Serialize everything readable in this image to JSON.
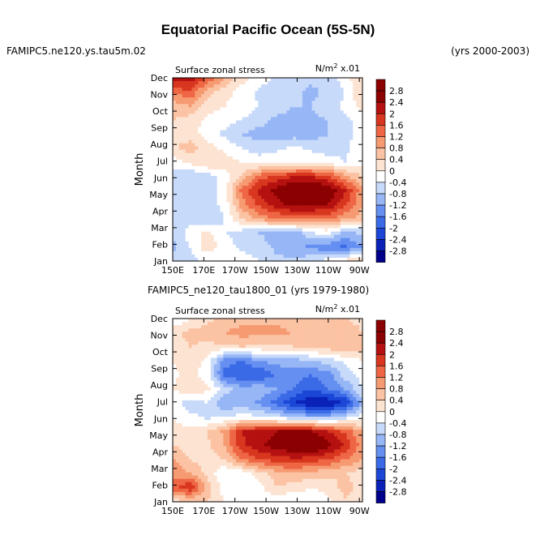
{
  "title": "Equatorial Pacific Ocean (5S-5N)",
  "top_left_label": "FAMIPC5.ne120.ys.tau5m.02",
  "top_right_label": "(yrs 2000-2003)",
  "bottom_case_label": "FAMIPC5_ne120_tau1800_01 (yrs 1979-1980)",
  "units": "N/m",
  "units_power": "2",
  "units_scale": "x.01",
  "colors": {
    "levels": [
      "#00008b",
      "#0a22b8",
      "#1c47d6",
      "#3a6ae6",
      "#658ff0",
      "#97b6f6",
      "#c8dafa",
      "#ffffff",
      "#fde3d2",
      "#fbc3a3",
      "#f69a72",
      "#ee6644",
      "#d8361f",
      "#b51111",
      "#8b0000"
    ]
  },
  "chart_data": [
    {
      "type": "heatmap",
      "subtitle": "Surface zonal stress",
      "units": "N/m^2 x.01",
      "xlabel": "",
      "ylabel": "Month",
      "xticks": [
        "150E",
        "170E",
        "170W",
        "150W",
        "130W",
        "110W",
        "90W"
      ],
      "xtick_lon": [
        150,
        170,
        190,
        210,
        230,
        250,
        270
      ],
      "xlim": [
        150,
        272
      ],
      "yticks": [
        "Jan",
        "Feb",
        "Mar",
        "Apr",
        "May",
        "Jun",
        "Jul",
        "Aug",
        "Sep",
        "Oct",
        "Nov",
        "Dec"
      ],
      "ylim": [
        1,
        12
      ],
      "colorbar_levels": [
        "2.8",
        "2.4",
        "2",
        "1.6",
        "1.2",
        "0.8",
        "0.4",
        "0",
        "-0.4",
        "-0.8",
        "-1.2",
        "-1.6",
        "-2",
        "-2.4",
        "-2.8"
      ],
      "grid": [
        [
          -0.6,
          -0.5,
          -0.4,
          -0.4,
          -0.2,
          -0.4,
          -0.7,
          -0.7,
          -0.5,
          -0.2,
          0.2,
          0.3
        ],
        [
          -0.9,
          -0.4,
          0.3,
          -0.2,
          -0.5,
          -0.6,
          -0.9,
          -1.1,
          -1.3,
          -1.5,
          -1.7,
          -1.2
        ],
        [
          -0.8,
          -0.2,
          0.1,
          -0.4,
          -0.6,
          -0.8,
          -1.0,
          -1.2,
          -0.4,
          -0.3,
          -0.9,
          -0.7
        ],
        [
          -0.6,
          -0.6,
          -0.8,
          -0.4,
          0.4,
          0.9,
          1.2,
          1.3,
          1.3,
          1.2,
          0.9,
          0.6
        ],
        [
          -0.4,
          -0.6,
          -0.6,
          -0.3,
          1.0,
          1.7,
          2.2,
          2.6,
          2.5,
          2.4,
          1.7,
          0.8
        ],
        [
          -0.4,
          -0.6,
          -0.6,
          -0.2,
          1.3,
          2.1,
          2.6,
          3.0,
          3.0,
          2.8,
          2.0,
          0.9
        ],
        [
          -0.6,
          -0.8,
          -0.6,
          -0.2,
          0.5,
          1.4,
          1.7,
          2.0,
          2.0,
          1.7,
          0.9,
          0.4
        ],
        [
          -0.2,
          0.1,
          0.4,
          0.2,
          0.0,
          -0.2,
          -0.1,
          -0.1,
          0.0,
          -0.2,
          -0.4,
          -0.2
        ],
        [
          0.3,
          0.6,
          0.2,
          -0.1,
          -0.4,
          -0.6,
          -0.5,
          -0.3,
          -0.5,
          -0.6,
          -0.5,
          0.0
        ],
        [
          0.4,
          0.2,
          -0.2,
          -0.5,
          -0.8,
          -1.0,
          -1.1,
          -1.0,
          -1.0,
          -0.8,
          -0.6,
          -0.2
        ],
        [
          0.4,
          0.2,
          -0.1,
          -0.2,
          -0.4,
          -0.6,
          -0.9,
          -0.9,
          -0.9,
          -0.8,
          -0.5,
          -0.3
        ],
        [
          0.6,
          0.8,
          0.2,
          0.0,
          -0.2,
          -0.4,
          -0.6,
          -0.8,
          -0.8,
          -0.6,
          -0.3,
          0.2
        ],
        [
          1.2,
          1.6,
          0.6,
          0.2,
          -0.2,
          -0.5,
          -0.6,
          -0.7,
          -0.9,
          -0.7,
          -0.4,
          0.4
        ],
        [
          2.4,
          2.2,
          1.6,
          0.8,
          0.2,
          -0.2,
          -0.5,
          -0.6,
          -0.7,
          -0.6,
          -0.2,
          0.4
        ]
      ]
    },
    {
      "type": "heatmap",
      "subtitle": "Surface zonal stress",
      "units": "N/m^2 x.01",
      "xlabel": "",
      "ylabel": "Month",
      "xticks": [
        "150E",
        "170E",
        "170W",
        "150W",
        "130W",
        "110W",
        "90W"
      ],
      "xtick_lon": [
        150,
        170,
        190,
        210,
        230,
        250,
        270
      ],
      "xlim": [
        150,
        272
      ],
      "yticks": [
        "Jan",
        "Feb",
        "Mar",
        "Apr",
        "May",
        "Jun",
        "Jul",
        "Aug",
        "Sep",
        "Oct",
        "Nov",
        "Dec"
      ],
      "ylim": [
        1,
        12
      ],
      "colorbar_levels": [
        "2.8",
        "2.4",
        "2",
        "1.6",
        "1.2",
        "0.8",
        "0.4",
        "0",
        "-0.4",
        "-0.8",
        "-1.2",
        "-1.6",
        "-2",
        "-2.4",
        "-2.8"
      ],
      "grid": [
        [
          0.2,
          0.3,
          0.4,
          0.0,
          -0.2,
          -0.1,
          -0.3,
          -0.4,
          -0.3,
          -0.1,
          0.3,
          0.1
        ],
        [
          1.4,
          2.0,
          0.6,
          -0.2,
          -0.4,
          -0.2,
          0.4,
          0.2,
          0.0,
          0.1,
          0.6,
          0.2
        ],
        [
          1.0,
          0.8,
          0.3,
          -0.4,
          -0.3,
          0.2,
          0.6,
          0.8,
          0.6,
          0.5,
          0.4,
          0.2
        ],
        [
          0.9,
          0.4,
          0.2,
          0.4,
          1.2,
          1.6,
          1.8,
          1.9,
          1.8,
          1.6,
          1.2,
          0.8
        ],
        [
          0.4,
          0.2,
          0.3,
          0.8,
          1.9,
          2.3,
          2.6,
          2.9,
          3.0,
          2.6,
          1.9,
          1.0
        ],
        [
          0.2,
          0.1,
          0.4,
          0.9,
          2.0,
          2.2,
          2.4,
          2.6,
          2.4,
          2.0,
          1.5,
          0.8
        ],
        [
          0.0,
          -0.3,
          -0.5,
          -0.4,
          -0.2,
          -0.3,
          -0.5,
          -0.8,
          -1.0,
          -1.0,
          -0.6,
          -0.2
        ],
        [
          -0.2,
          -0.6,
          -0.4,
          -1.2,
          -1.0,
          -1.3,
          -1.8,
          -2.4,
          -2.8,
          -2.8,
          -2.4,
          -1.0
        ],
        [
          0.0,
          0.3,
          0.1,
          -0.6,
          -1.0,
          -0.9,
          -1.2,
          -1.6,
          -2.0,
          -1.6,
          -1.2,
          -0.4
        ],
        [
          -0.1,
          0.2,
          -0.2,
          -1.8,
          -2.0,
          -2.0,
          -1.6,
          -1.4,
          -1.6,
          -1.4,
          -0.6,
          -0.2
        ],
        [
          0.0,
          0.2,
          -0.1,
          -1.4,
          -1.6,
          -1.2,
          -1.0,
          -1.0,
          -0.8,
          -0.6,
          -0.3,
          0.0
        ],
        [
          0.2,
          0.4,
          0.3,
          0.3,
          0.4,
          0.3,
          0.3,
          0.4,
          0.5,
          0.6,
          0.8,
          0.6
        ],
        [
          0.3,
          0.5,
          0.6,
          0.8,
          1.0,
          0.9,
          0.9,
          0.8,
          0.6,
          0.7,
          0.6,
          0.4
        ],
        [
          -0.4,
          0.0,
          0.3,
          0.5,
          0.6,
          0.7,
          0.7,
          0.6,
          0.5,
          0.5,
          0.4,
          0.3
        ]
      ]
    }
  ]
}
